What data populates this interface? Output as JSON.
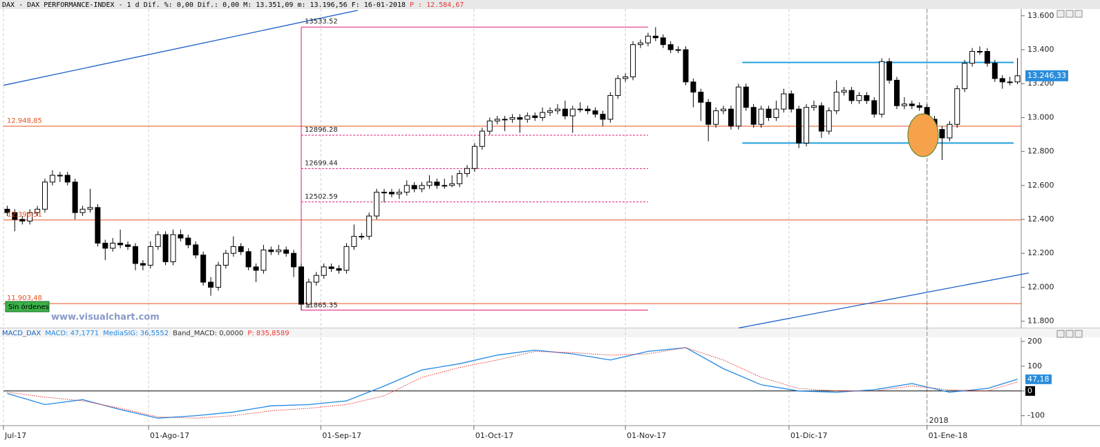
{
  "header": {
    "title": "DAX - DAX PERFORMANCE-INDEX -  1 d",
    "fields": "Dif. %: 0,00 Dif.: 0,00 M: 13.351,09 m: 13.196,56 F: 16-01-2018",
    "price": "P : 12.584,67"
  },
  "watermark": "www.visualchart.com",
  "button": "Sin órdenes",
  "chart_data": [
    {
      "type": "candlestick",
      "candles": [
        [
          12460,
          12480,
          12420,
          12440
        ],
        [
          12440,
          12460,
          12330,
          12400
        ],
        [
          12400,
          12420,
          12370,
          12390
        ],
        [
          12390,
          12460,
          12370,
          12440
        ],
        [
          12440,
          12480,
          12420,
          12460
        ],
        [
          12460,
          12640,
          12440,
          12620
        ],
        [
          12620,
          12690,
          12600,
          12660
        ],
        [
          12660,
          12680,
          12620,
          12660
        ],
        [
          12660,
          12680,
          12600,
          12620
        ],
        [
          12620,
          12640,
          12400,
          12440
        ],
        [
          12440,
          12480,
          12420,
          12460
        ],
        [
          12460,
          12580,
          12440,
          12470
        ],
        [
          12470,
          12490,
          12240,
          12260
        ],
        [
          12260,
          12280,
          12160,
          12230
        ],
        [
          12230,
          12290,
          12210,
          12260
        ],
        [
          12260,
          12340,
          12230,
          12250
        ],
        [
          12250,
          12270,
          12220,
          12240
        ],
        [
          12240,
          12260,
          12100,
          12140
        ],
        [
          12140,
          12160,
          12100,
          12130
        ],
        [
          12130,
          12270,
          12110,
          12240
        ],
        [
          12240,
          12330,
          12220,
          12310
        ],
        [
          12310,
          12330,
          12130,
          12150
        ],
        [
          12150,
          12340,
          12130,
          12310
        ],
        [
          12310,
          12340,
          12270,
          12290
        ],
        [
          12290,
          12310,
          12230,
          12250
        ],
        [
          12250,
          12270,
          12170,
          12190
        ],
        [
          12190,
          12210,
          12010,
          12030
        ],
        [
          12030,
          12060,
          11950,
          12000
        ],
        [
          12000,
          12150,
          11980,
          12130
        ],
        [
          12130,
          12220,
          12110,
          12200
        ],
        [
          12200,
          12300,
          12180,
          12240
        ],
        [
          12240,
          12260,
          12190,
          12210
        ],
        [
          12210,
          12230,
          12100,
          12120
        ],
        [
          12120,
          12140,
          12030,
          12100
        ],
        [
          12100,
          12250,
          12080,
          12220
        ],
        [
          12220,
          12240,
          12190,
          12210
        ],
        [
          12210,
          12250,
          12190,
          12220
        ],
        [
          12220,
          12240,
          12180,
          12200
        ],
        [
          12200,
          12220,
          12060,
          12120
        ],
        [
          12120,
          12140,
          11865,
          11900
        ],
        [
          11900,
          12050,
          11880,
          12030
        ],
        [
          12030,
          12090,
          12010,
          12070
        ],
        [
          12070,
          12140,
          12050,
          12120
        ],
        [
          12120,
          12140,
          12090,
          12110
        ],
        [
          12110,
          12130,
          12080,
          12100
        ],
        [
          12100,
          12260,
          12080,
          12240
        ],
        [
          12240,
          12370,
          12220,
          12300
        ],
        [
          12300,
          12320,
          12280,
          12300
        ],
        [
          12300,
          12440,
          12280,
          12420
        ],
        [
          12420,
          12580,
          12400,
          12560
        ],
        [
          12560,
          12580,
          12500,
          12560
        ],
        [
          12560,
          12580,
          12530,
          12550
        ],
        [
          12550,
          12580,
          12520,
          12560
        ],
        [
          12560,
          12630,
          12540,
          12600
        ],
        [
          12600,
          12620,
          12560,
          12580
        ],
        [
          12580,
          12620,
          12560,
          12600
        ],
        [
          12600,
          12660,
          12580,
          12620
        ],
        [
          12620,
          12640,
          12580,
          12600
        ],
        [
          12600,
          12640,
          12580,
          12600
        ],
        [
          12600,
          12660,
          12590,
          12610
        ],
        [
          12610,
          12690,
          12590,
          12670
        ],
        [
          12670,
          12720,
          12650,
          12700
        ],
        [
          12700,
          12850,
          12680,
          12830
        ],
        [
          12830,
          12940,
          12810,
          12920
        ],
        [
          12920,
          13000,
          12900,
          12980
        ],
        [
          12980,
          13010,
          12960,
          12990
        ],
        [
          12990,
          13010,
          12920,
          12990
        ],
        [
          12990,
          13020,
          12970,
          13000
        ],
        [
          13000,
          13020,
          12910,
          12990
        ],
        [
          12990,
          13030,
          12970,
          13010
        ],
        [
          13010,
          13030,
          12980,
          13000
        ],
        [
          13000,
          13060,
          12980,
          13030
        ],
        [
          13030,
          13060,
          13010,
          13040
        ],
        [
          13040,
          13080,
          13020,
          13050
        ],
        [
          13050,
          13100,
          12990,
          13010
        ],
        [
          13010,
          13070,
          12910,
          13050
        ],
        [
          13050,
          13090,
          13030,
          13050
        ],
        [
          13050,
          13070,
          13020,
          13040
        ],
        [
          13040,
          13060,
          13000,
          13020
        ],
        [
          13020,
          13040,
          12950,
          12990
        ],
        [
          12990,
          13150,
          12970,
          13130
        ],
        [
          13130,
          13250,
          13110,
          13230
        ],
        [
          13230,
          13260,
          13210,
          13240
        ],
        [
          13240,
          13450,
          13220,
          13430
        ],
        [
          13430,
          13460,
          13410,
          13440
        ],
        [
          13440,
          13500,
          13420,
          13480
        ],
        [
          13480,
          13533,
          13450,
          13470
        ],
        [
          13470,
          13490,
          13410,
          13430
        ],
        [
          13430,
          13450,
          13380,
          13400
        ],
        [
          13400,
          13420,
          13380,
          13400
        ],
        [
          13400,
          13420,
          13190,
          13210
        ],
        [
          13210,
          13230,
          13060,
          13150
        ],
        [
          13150,
          13170,
          12980,
          13090
        ],
        [
          13090,
          13110,
          12860,
          12960
        ],
        [
          12960,
          13060,
          12940,
          13040
        ],
        [
          13040,
          13070,
          13020,
          13050
        ],
        [
          13050,
          13070,
          12930,
          12950
        ],
        [
          12950,
          13200,
          12930,
          13180
        ],
        [
          13180,
          13200,
          13040,
          13060
        ],
        [
          13060,
          13080,
          12940,
          12960
        ],
        [
          12960,
          13070,
          12940,
          13050
        ],
        [
          13050,
          13070,
          12980,
          13000
        ],
        [
          13000,
          13100,
          12980,
          13050
        ],
        [
          13050,
          13170,
          13030,
          13140
        ],
        [
          13140,
          13160,
          13030,
          13050
        ],
        [
          13050,
          13070,
          12820,
          12850
        ],
        [
          12850,
          13080,
          12830,
          13060
        ],
        [
          13060,
          13100,
          13040,
          13070
        ],
        [
          13070,
          13090,
          12880,
          12920
        ],
        [
          12920,
          13060,
          12900,
          13040
        ],
        [
          13040,
          13220,
          13020,
          13150
        ],
        [
          13150,
          13180,
          13130,
          13160
        ],
        [
          13160,
          13180,
          13080,
          13100
        ],
        [
          13100,
          13150,
          13080,
          13130
        ],
        [
          13130,
          13150,
          13080,
          13100
        ],
        [
          13100,
          13120,
          13000,
          13020
        ],
        [
          13020,
          13350,
          13000,
          13330
        ],
        [
          13330,
          13350,
          13200,
          13220
        ],
        [
          13220,
          13240,
          13050,
          13070
        ],
        [
          13070,
          13120,
          13050,
          13080
        ],
        [
          13080,
          13100,
          13050,
          13070
        ],
        [
          13070,
          13090,
          13040,
          13060
        ],
        [
          13060,
          13080,
          12970,
          12990
        ],
        [
          12990,
          13010,
          12910,
          12930
        ],
        [
          12930,
          12950,
          12750,
          12880
        ],
        [
          12880,
          12980,
          12860,
          12960
        ],
        [
          12960,
          13190,
          12940,
          13170
        ],
        [
          13170,
          13340,
          13150,
          13320
        ],
        [
          13320,
          13410,
          13300,
          13390
        ],
        [
          13390,
          13420,
          13370,
          13390
        ],
        [
          13390,
          13410,
          13300,
          13320
        ],
        [
          13320,
          13340,
          13210,
          13230
        ],
        [
          13230,
          13250,
          13170,
          13210
        ],
        [
          13210,
          13240,
          13190,
          13210
        ],
        [
          13210,
          13351.09,
          13196.56,
          13246.33
        ]
      ],
      "last_label": "13.246,33",
      "ylim": [
        11770,
        13640
      ],
      "yticks": [
        {
          "value": 11800,
          "label": "11.800"
        },
        {
          "value": 12000,
          "label": "12.000"
        },
        {
          "value": 12200,
          "label": "12.200"
        },
        {
          "value": 12400,
          "label": "12.400"
        },
        {
          "value": 12600,
          "label": "12.600"
        },
        {
          "value": 12800,
          "label": "12.800"
        },
        {
          "value": 13000,
          "label": "13.000"
        },
        {
          "value": 13200,
          "label": "13.200"
        },
        {
          "value": 13400,
          "label": "13.400"
        },
        {
          "value": 13600,
          "label": "13.600"
        }
      ],
      "xticks": [
        {
          "value": -0.5,
          "label": "Jul-17"
        },
        {
          "value": 18.75,
          "label": "01-Ago-17"
        },
        {
          "value": 41.6,
          "label": "01-Sep-17"
        },
        {
          "value": 61.9,
          "label": "01-Oct-17"
        },
        {
          "value": 82,
          "label": "01-Nov-17"
        },
        {
          "value": 103.7,
          "label": "01-Dic-17"
        },
        {
          "value": 122,
          "label": "01-Ene-18"
        }
      ],
      "year_tick": {
        "value": 122,
        "label": "2018"
      },
      "levels": [
        {
          "value": 12948.85,
          "label": "12.948,85"
        },
        {
          "value": 12396.51,
          "label": "12.396,51"
        },
        {
          "value": 11903.48,
          "label": "11.903,48"
        }
      ],
      "level_color": "#e8501c",
      "channel": [
        13325,
        12850
      ],
      "channel_color": "#1ea0dc",
      "fib": {
        "values": [
          13533.52,
          12896.28,
          12699.44,
          12502.59,
          11865.35
        ],
        "start": 39,
        "end": 85,
        "color": "#e0187a"
      },
      "trendlines": [
        [
          [
            -0.5,
            13190
          ],
          [
            46.5,
            13632
          ]
        ],
        [
          [
            97,
            11760
          ],
          [
            135.5,
            12084
          ]
        ]
      ],
      "trend_color": "#1a5fc8"
    },
    {
      "type": "line",
      "title": "MACD_DAX",
      "x": [
        0,
        5,
        10,
        15,
        20,
        25,
        30,
        35,
        40,
        45,
        50,
        55,
        60,
        65,
        70,
        75,
        80,
        85,
        90,
        95,
        100,
        105,
        110,
        115,
        120,
        125,
        130,
        134
      ],
      "series": [
        {
          "label": "MACD: 47,1771",
          "color": "#1e88e5",
          "values": [
            -10,
            -55,
            -35,
            -75,
            -110,
            -100,
            -85,
            -60,
            -55,
            -40,
            20,
            85,
            110,
            145,
            165,
            150,
            125,
            160,
            175,
            90,
            25,
            0,
            -5,
            5,
            30,
            -5,
            10,
            47.1771
          ]
        },
        {
          "label": "MediaSIG: 36,5552",
          "color": "#e53935",
          "dotted": true,
          "values": [
            -5,
            -25,
            -40,
            -70,
            -105,
            -110,
            -100,
            -80,
            -70,
            -55,
            -20,
            55,
            95,
            125,
            160,
            155,
            145,
            150,
            175,
            125,
            55,
            10,
            0,
            0,
            20,
            5,
            0,
            36.5552
          ]
        }
      ],
      "band_label": "Band_MACD: 0,0000",
      "band": 0,
      "p_label": "P: 835,8589",
      "last_label": "47,18",
      "ylim": [
        -140,
        214
      ],
      "yticks": [
        -100,
        0,
        100,
        200
      ]
    }
  ]
}
